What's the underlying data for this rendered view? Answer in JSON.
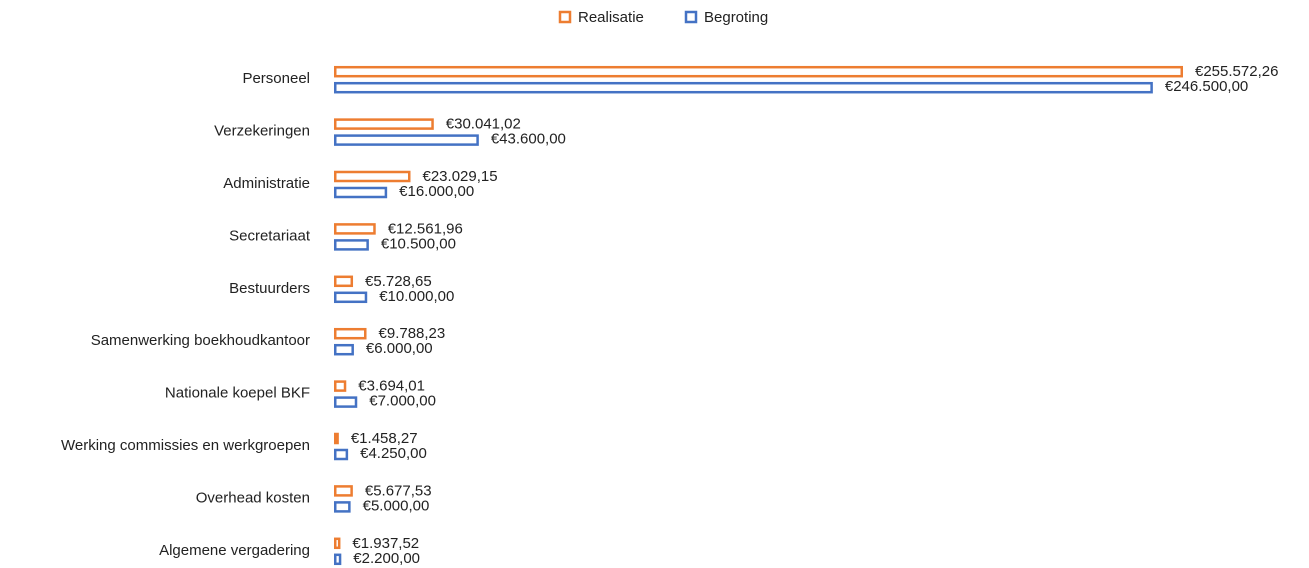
{
  "chart_data": {
    "type": "bar",
    "orientation": "horizontal",
    "categories": [
      "Personeel",
      "Verzekeringen",
      "Administratie",
      "Secretariaat",
      "Bestuurders",
      "Samenwerking boekhoudkantoor",
      "Nationale koepel BKF",
      "Werking commissies en werkgroepen",
      "Overhead kosten",
      "Algemene vergadering"
    ],
    "series": [
      {
        "name": "Realisatie",
        "color": "#ed7d31",
        "values": [
          255572.26,
          30041.02,
          23029.15,
          12561.96,
          5728.65,
          9788.23,
          3694.01,
          1458.27,
          5677.53,
          1937.52
        ],
        "value_labels": [
          "€255.572,26",
          "€30.041,02",
          "€23.029,15",
          "€12.561,96",
          "€5.728,65",
          "€9.788,23",
          "€3.694,01",
          "€1.458,27",
          "€5.677,53",
          "€1.937,52"
        ]
      },
      {
        "name": "Begroting",
        "color": "#4472c4",
        "values": [
          246500,
          43600,
          16000,
          10500,
          10000,
          6000,
          7000,
          4250,
          5000,
          2200
        ],
        "value_labels": [
          "€246.500,00",
          "€43.600,00",
          "€16.000,00",
          "€10.500,00",
          "€10.000,00",
          "€6.000,00",
          "€7.000,00",
          "€4.250,00",
          "€5.000,00",
          "€2.200,00"
        ]
      }
    ],
    "legend": "top"
  }
}
